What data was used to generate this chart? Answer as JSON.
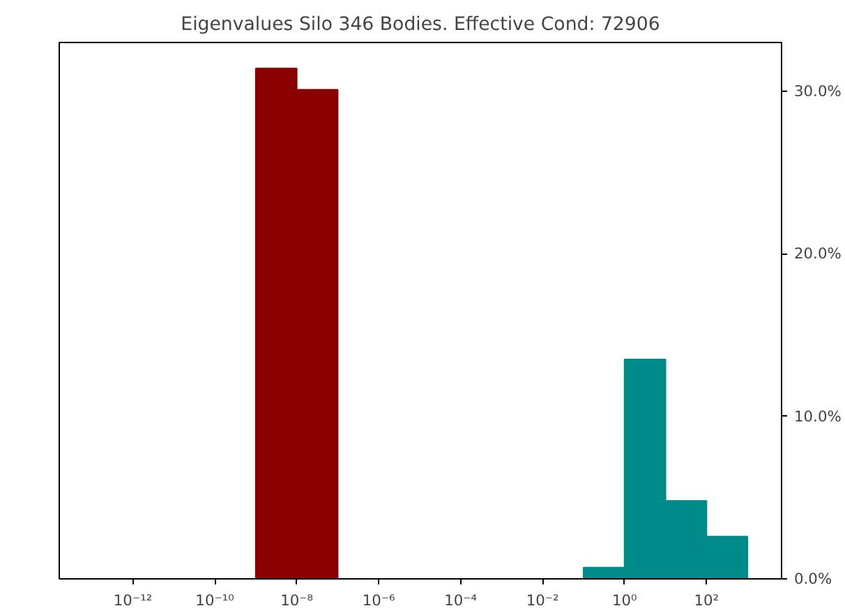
{
  "chart_data": {
    "type": "histogram",
    "title": "Eigenvalues Silo 346 Bodies. Effective Cond: 72906",
    "log": "x",
    "bins": [
      1e-09,
      1e-08,
      1e-07,
      1e-06,
      1e-05,
      0.0001,
      0.001,
      0.01,
      0.1,
      1,
      10,
      100,
      1000
    ],
    "values": [
      31.4,
      30.1,
      0,
      0,
      0,
      0,
      0,
      0,
      0.7,
      13.5,
      4.8,
      2.6
    ],
    "colors": [
      "#8b0000",
      "#8b0000",
      "#8b0000",
      "#8b0000",
      "#8b0000",
      "#8b0000",
      "#008b8b",
      "#008b8b",
      "#008b8b",
      "#008b8b",
      "#008b8b",
      "#008b8b"
    ],
    "xlim": [
      1.6e-14,
      6800
    ],
    "ylim": [
      0,
      33
    ],
    "xticks": [
      {
        "value": 1e-12,
        "label": "10⁻¹²"
      },
      {
        "value": 1e-10,
        "label": "10⁻¹⁰"
      },
      {
        "value": 1e-08,
        "label": "10⁻⁸"
      },
      {
        "value": 1e-06,
        "label": "10⁻⁶"
      },
      {
        "value": 0.0001,
        "label": "10⁻⁴"
      },
      {
        "value": 0.01,
        "label": "10⁻²"
      },
      {
        "value": 1,
        "label": "10⁰"
      },
      {
        "value": 100,
        "label": "10²"
      }
    ],
    "yticks": [
      {
        "value": 0,
        "label": "0.0%"
      },
      {
        "value": 10,
        "label": "10.0%"
      },
      {
        "value": 20,
        "label": "20.0%"
      },
      {
        "value": 30,
        "label": "30.0%"
      }
    ]
  }
}
